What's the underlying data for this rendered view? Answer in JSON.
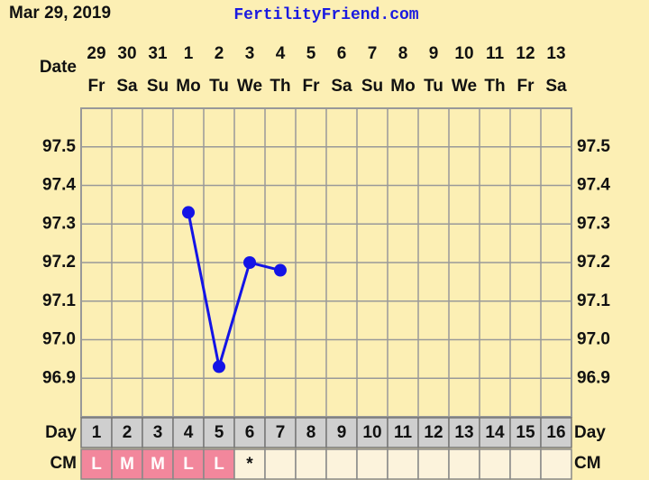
{
  "chart_data": {
    "type": "line",
    "date_label": "Mar 29, 2019",
    "title": "FertilityFriend.com",
    "date_row_label": "Date",
    "dates": [
      29,
      30,
      31,
      1,
      2,
      3,
      4,
      5,
      6,
      7,
      8,
      9,
      10,
      11,
      12,
      13
    ],
    "weekdays": [
      "Fr",
      "Sa",
      "Su",
      "Mo",
      "Tu",
      "We",
      "Th",
      "Fr",
      "Sa",
      "Su",
      "Mo",
      "Tu",
      "We",
      "Th",
      "Fr",
      "Sa"
    ],
    "day_row_label": "Day",
    "categories": [
      1,
      2,
      3,
      4,
      5,
      6,
      7,
      8,
      9,
      10,
      11,
      12,
      13,
      14,
      15,
      16
    ],
    "cm_row_label": "CM",
    "cm": [
      "L",
      "M",
      "M",
      "L",
      "L",
      "*",
      null,
      null,
      null,
      null,
      null,
      null,
      null,
      null,
      null,
      null
    ],
    "cm_color": "#f2879c",
    "values": [
      null,
      null,
      null,
      97.33,
      96.93,
      97.2,
      97.18,
      null,
      null,
      null,
      null,
      null,
      null,
      null,
      null,
      null
    ],
    "color": "#1414e6",
    "ylim": [
      96.8,
      97.6
    ],
    "yticks": [
      96.9,
      {
        "value": 97,
        "label": "97.0"
      },
      97.1,
      97.2,
      97.3,
      97.4,
      97.5
    ],
    "grid": true
  }
}
